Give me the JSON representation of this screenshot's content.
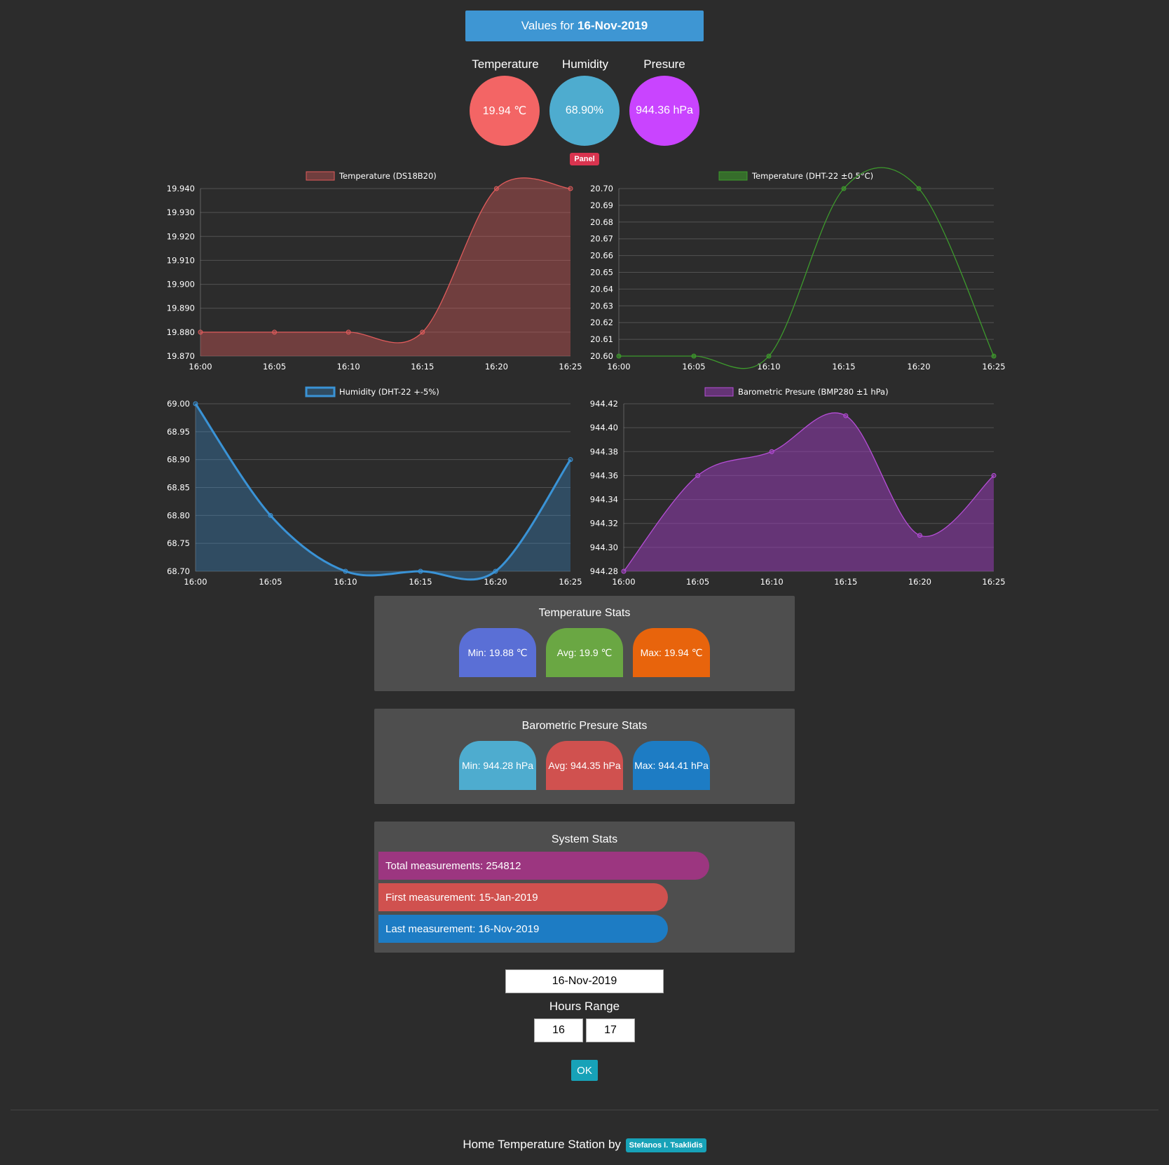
{
  "header": {
    "prefix": "Values for",
    "date": "16-Nov-2019"
  },
  "gauges": [
    {
      "label": "Temperature",
      "value": "19.94 ℃",
      "color": "#f36565"
    },
    {
      "label": "Humidity",
      "value": "68.90%",
      "color": "#4eaccf"
    },
    {
      "label": "Presure",
      "value": "944.36 hPa",
      "color": "#c944ff"
    }
  ],
  "panel_badge": "Panel",
  "chart_data": [
    {
      "type": "area",
      "legend": "Temperature (DS18B20)",
      "x": [
        "16:00",
        "16:05",
        "16:10",
        "16:15",
        "16:20",
        "16:25"
      ],
      "values": [
        19.88,
        19.88,
        19.88,
        19.88,
        19.94,
        19.94
      ],
      "ylim": [
        19.87,
        19.94
      ],
      "yticks": [
        "19.870",
        "19.880",
        "19.890",
        "19.900",
        "19.910",
        "19.920",
        "19.930",
        "19.940"
      ],
      "color": "#e05b5b",
      "fill": "rgba(224,91,91,0.38)",
      "points": true,
      "grid": true
    },
    {
      "type": "line",
      "legend": "Temperature (DHT-22 ±0.5°C)",
      "x": [
        "16:00",
        "16:05",
        "16:10",
        "16:15",
        "16:20",
        "16:25"
      ],
      "values": [
        20.6,
        20.6,
        20.6,
        20.7,
        20.7,
        20.6
      ],
      "ylim": [
        20.6,
        20.7
      ],
      "yticks": [
        "20.60",
        "20.61",
        "20.62",
        "20.63",
        "20.64",
        "20.65",
        "20.66",
        "20.67",
        "20.68",
        "20.69",
        "20.70"
      ],
      "color": "#3d9a2c",
      "fill": "rgba(61,154,44,0.6)",
      "points": true,
      "grid": true
    },
    {
      "type": "area",
      "legend": "Humidity (DHT-22 +-5%)",
      "x": [
        "16:00",
        "16:05",
        "16:10",
        "16:15",
        "16:20",
        "16:25"
      ],
      "values": [
        69.0,
        68.8,
        68.7,
        68.7,
        68.7,
        68.9
      ],
      "ylim": [
        68.7,
        69.0
      ],
      "yticks": [
        "68.70",
        "68.75",
        "68.80",
        "68.85",
        "68.90",
        "68.95",
        "69.00"
      ],
      "color": "#3a93d6",
      "fill": "rgba(58,147,214,0.32)",
      "points": true,
      "grid": true
    },
    {
      "type": "area",
      "legend": "Barometric Presure (BMP280 ±1 hPa)",
      "x": [
        "16:00",
        "16:05",
        "16:10",
        "16:15",
        "16:20",
        "16:25"
      ],
      "values": [
        944.28,
        944.36,
        944.38,
        944.41,
        944.31,
        944.36
      ],
      "ylim": [
        944.28,
        944.42
      ],
      "yticks": [
        "944.28",
        "944.30",
        "944.32",
        "944.34",
        "944.36",
        "944.38",
        "944.40",
        "944.42"
      ],
      "color": "#b54ed6",
      "fill": "rgba(150,60,180,0.55)",
      "points": true,
      "grid": true
    }
  ],
  "temperature_stats": {
    "title": "Temperature Stats",
    "min": "Min: 19.88 ℃",
    "avg": "Avg: 19.9 ℃",
    "max": "Max: 19.94 ℃",
    "colors": [
      "#5a6fd6",
      "#6aa743",
      "#e8640c"
    ]
  },
  "pressure_stats": {
    "title": "Barometric Presure Stats",
    "min": "Min: 944.28 hPa",
    "avg": "Avg: 944.35 hPa",
    "max": "Max: 944.41 hPa",
    "colors": [
      "#4eaccf",
      "#d0514f",
      "#1d7cc4"
    ]
  },
  "system_stats": {
    "title": "System Stats",
    "total": "Total measurements: 254812",
    "first": "First measurement: 15-Jan-2019",
    "last": "Last measurement: 16-Nov-2019",
    "colors": [
      "#9c3680",
      "#d0514f",
      "#1d7cc4"
    ]
  },
  "form": {
    "date_value": "16-Nov-2019",
    "hours_label": "Hours Range",
    "hour_from": "16",
    "hour_to": "17",
    "ok_label": "OK"
  },
  "footer": {
    "text": "Home Temperature Station by",
    "author": "Stefanos I. Tsaklidis"
  }
}
